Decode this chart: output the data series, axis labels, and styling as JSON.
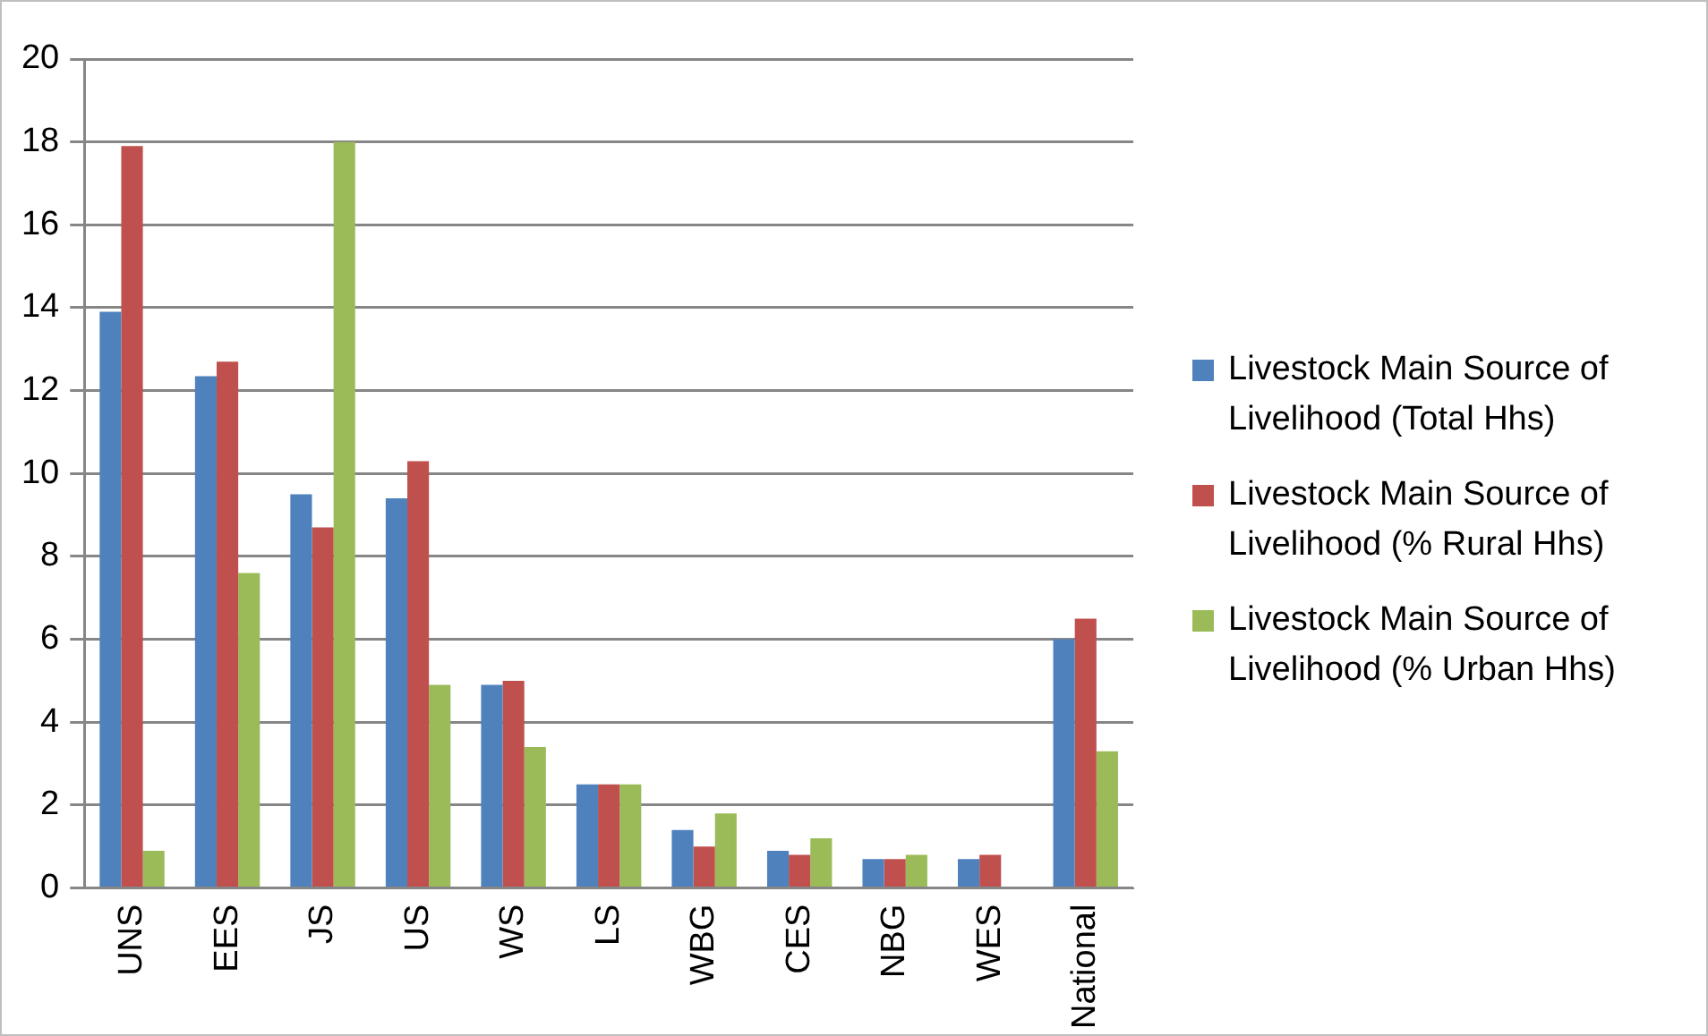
{
  "chart_data": {
    "type": "bar",
    "categories": [
      "UNS",
      "EES",
      "JS",
      "US",
      "WS",
      "LS",
      "WBG",
      "CES",
      "NBG",
      "WES",
      "National"
    ],
    "series": [
      {
        "name": "Livestock Main Source of Livelihood (Total Hhs)",
        "color": "#4f81bd",
        "values": [
          13.9,
          12.35,
          9.5,
          9.4,
          4.9,
          2.5,
          1.4,
          0.9,
          0.7,
          0.7,
          6.0
        ]
      },
      {
        "name": "Livestock Main Source of Livelihood (% Rural Hhs)",
        "color": "#c0504d",
        "values": [
          17.9,
          12.7,
          8.7,
          10.3,
          5.0,
          2.5,
          1.0,
          0.8,
          0.7,
          0.8,
          6.5
        ]
      },
      {
        "name": "Livestock Main Source of Livelihood (% Urban Hhs)",
        "color": "#9bbb59",
        "values": [
          0.9,
          7.6,
          18.0,
          4.9,
          3.4,
          2.5,
          1.8,
          1.2,
          0.8,
          null,
          3.3
        ]
      }
    ],
    "ylim": [
      0,
      20
    ],
    "yticks": [
      0,
      2,
      4,
      6,
      8,
      10,
      12,
      14,
      16,
      18,
      20
    ],
    "grid": "y",
    "legend": "right"
  }
}
